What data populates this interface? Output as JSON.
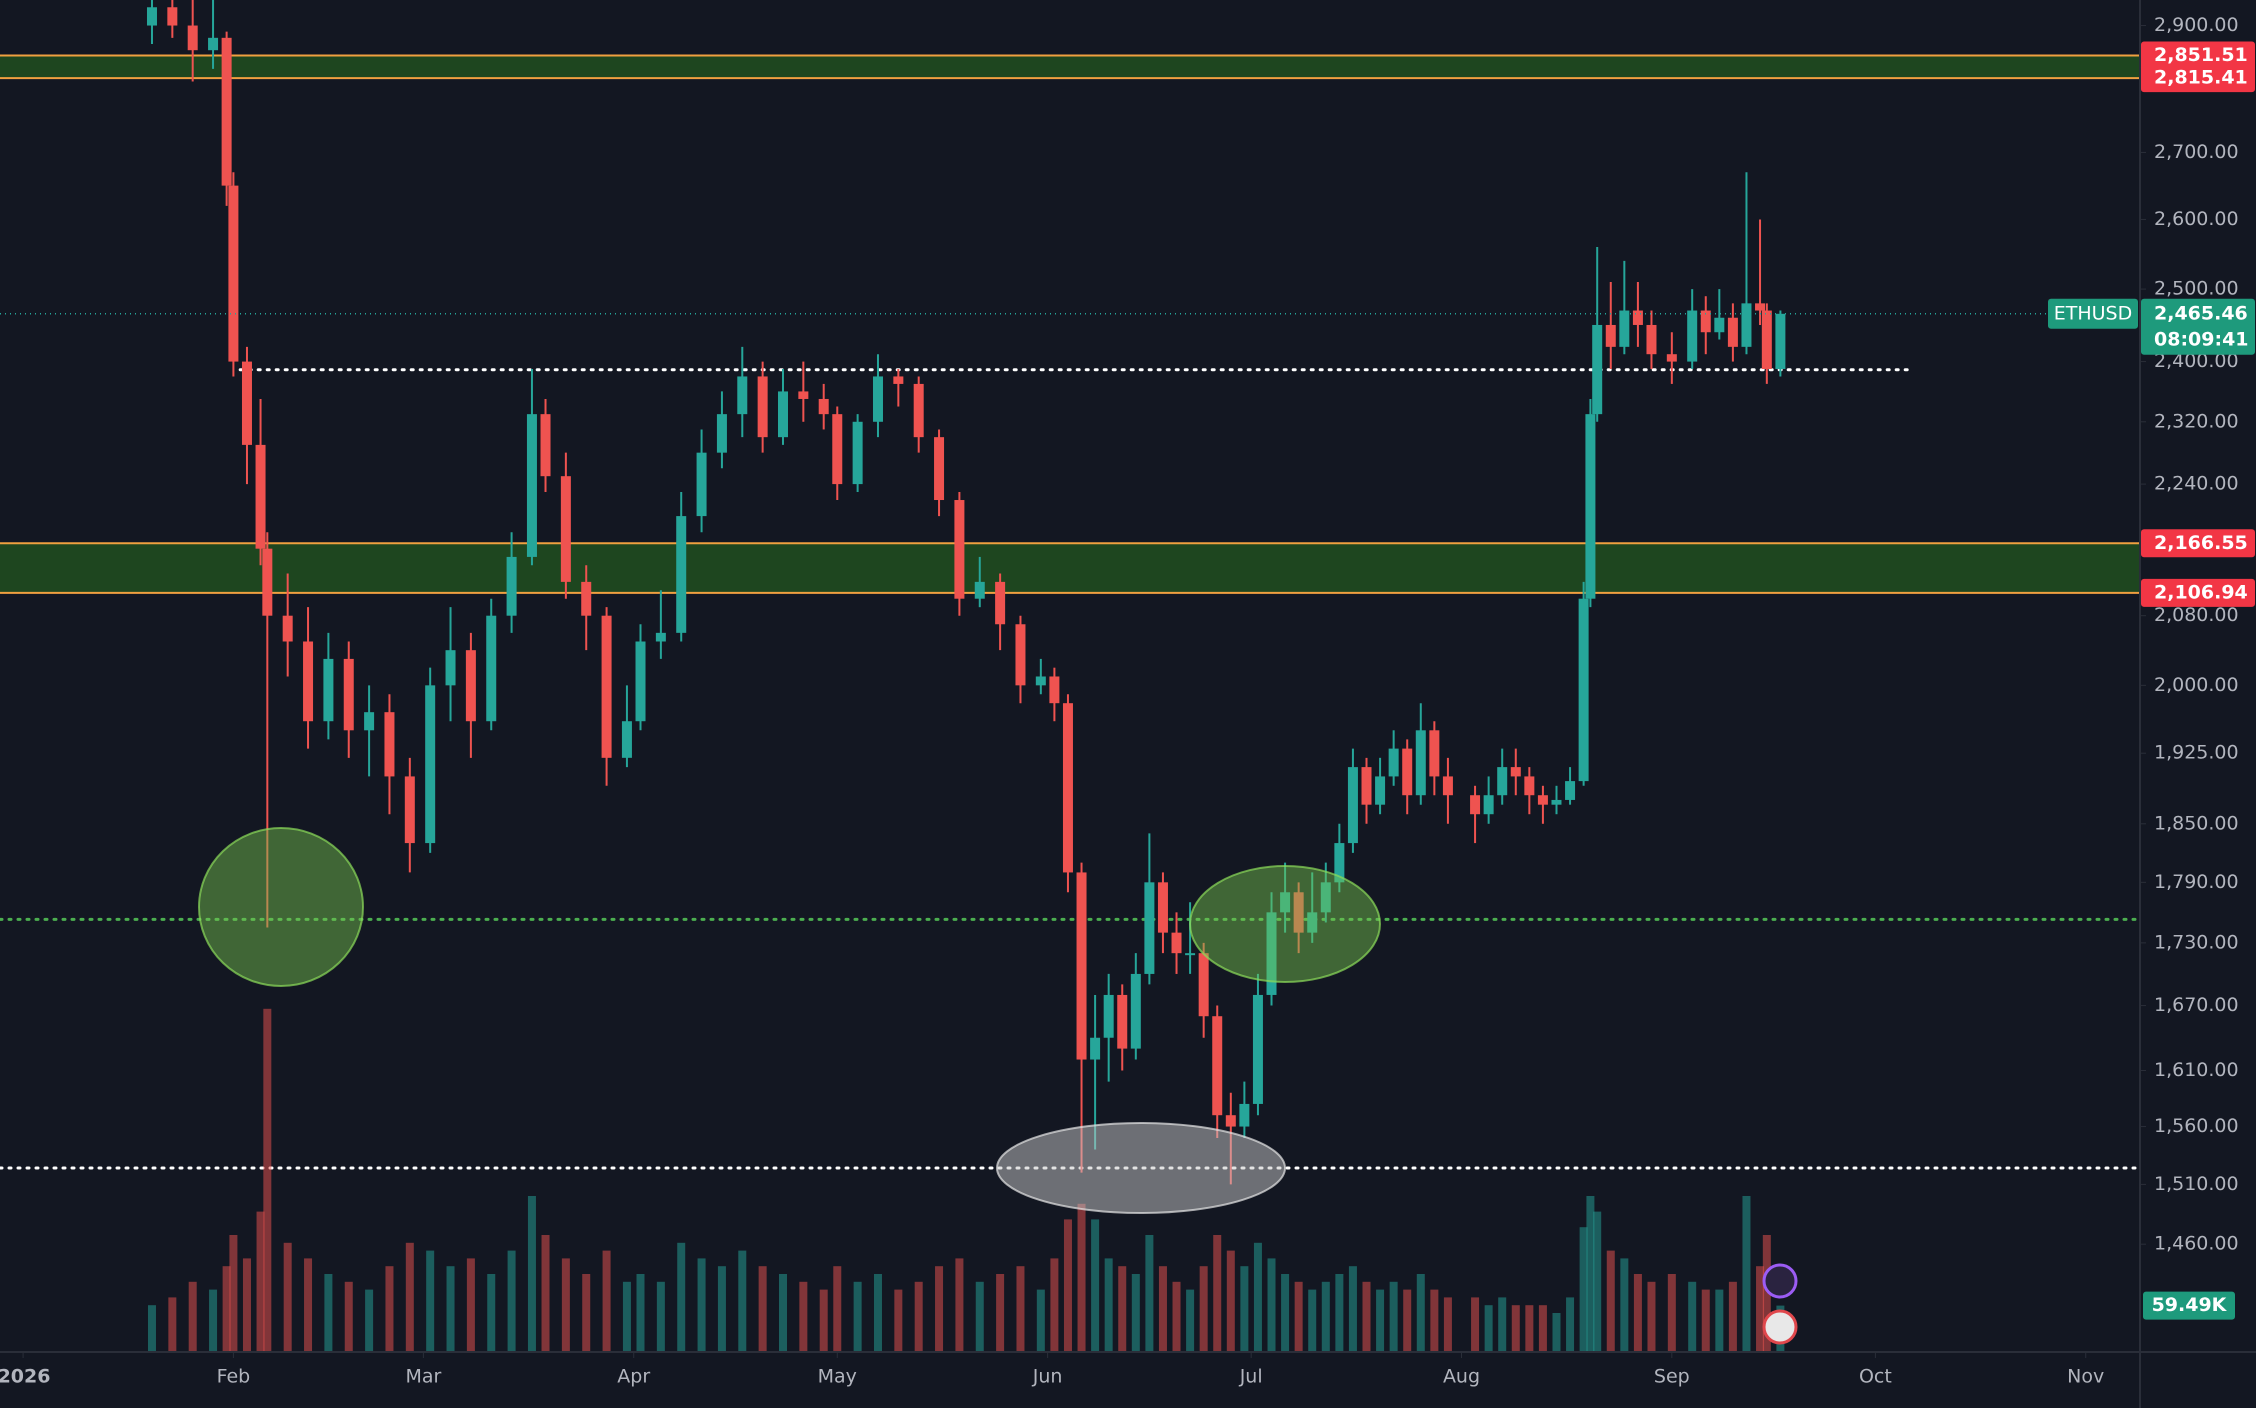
{
  "chart_data": {
    "type": "candlestick",
    "symbol": "ETHUSD",
    "up_color": "#26a69a",
    "down_color": "#ef5350",
    "log_scale": true,
    "ylim": [
      1374,
      2942
    ],
    "xlim": [
      -3.4,
      312
    ],
    "volume_lim": [
      0,
      500000
    ],
    "x": [
      19,
      22,
      25,
      28,
      30,
      31,
      33,
      35,
      36,
      39,
      42,
      45,
      48,
      51,
      54,
      57,
      60,
      63,
      66,
      69,
      72,
      75,
      77,
      80,
      83,
      86,
      89,
      91,
      94,
      97,
      100,
      103,
      106,
      109,
      112,
      115,
      118,
      120,
      123,
      126,
      129,
      132,
      135,
      138,
      141,
      144,
      147,
      150,
      152,
      154,
      156,
      158,
      160,
      162,
      164,
      166,
      168,
      170,
      172,
      174,
      176,
      178,
      180,
      182,
      184,
      186,
      188,
      190,
      192,
      194,
      196,
      198,
      200,
      202,
      204,
      206,
      208,
      210,
      214,
      216,
      218,
      220,
      222,
      224,
      226,
      228,
      230,
      231,
      232,
      234,
      236,
      238,
      240,
      243,
      246,
      248,
      250,
      252,
      254,
      256,
      257,
      259
    ],
    "open": [
      2900,
      2930,
      2900,
      2860,
      2880,
      2650,
      2400,
      2290,
      2160,
      2080,
      2050,
      1960,
      2030,
      1950,
      1970,
      1900,
      1830,
      2000,
      2040,
      1960,
      2080,
      2150,
      2330,
      2250,
      2120,
      2080,
      1920,
      1960,
      2050,
      2060,
      2200,
      2280,
      2330,
      2380,
      2300,
      2360,
      2350,
      2330,
      2240,
      2320,
      2380,
      2370,
      2300,
      2220,
      2100,
      2120,
      2070,
      2000,
      2010,
      1980,
      1800,
      1620,
      1640,
      1680,
      1630,
      1700,
      1790,
      1740,
      1720,
      1720,
      1660,
      1570,
      1560,
      1580,
      1680,
      1760,
      1780,
      1740,
      1760,
      1790,
      1830,
      1910,
      1870,
      1900,
      1930,
      1880,
      1950,
      1900,
      1880,
      1860,
      1880,
      1910,
      1900,
      1880,
      1870,
      1875,
      1895,
      2100,
      2330,
      2450,
      2420,
      2470,
      2450,
      2410,
      2400,
      2470,
      2440,
      2460,
      2420,
      2480,
      2470,
      2390
    ],
    "high": [
      2990,
      3010,
      2960,
      2960,
      2890,
      2670,
      2420,
      2350,
      2180,
      2130,
      2090,
      2060,
      2050,
      2000,
      1990,
      1920,
      2020,
      2090,
      2060,
      2100,
      2180,
      2390,
      2350,
      2280,
      2140,
      2090,
      2000,
      2070,
      2110,
      2230,
      2310,
      2360,
      2420,
      2400,
      2390,
      2400,
      2370,
      2340,
      2330,
      2410,
      2390,
      2380,
      2310,
      2230,
      2150,
      2130,
      2080,
      2030,
      2020,
      1990,
      1810,
      1680,
      1700,
      1690,
      1720,
      1840,
      1800,
      1760,
      1770,
      1730,
      1670,
      1590,
      1600,
      1700,
      1780,
      1810,
      1790,
      1800,
      1810,
      1850,
      1930,
      1920,
      1920,
      1950,
      1940,
      1980,
      1960,
      1920,
      1890,
      1900,
      1930,
      1930,
      1910,
      1890,
      1890,
      1910,
      2120,
      2350,
      2560,
      2510,
      2540,
      2510,
      2470,
      2440,
      2500,
      2490,
      2500,
      2480,
      2670,
      2600,
      2480,
      2470
    ],
    "low": [
      2870,
      2880,
      2810,
      2830,
      2620,
      2380,
      2240,
      2140,
      1745,
      2010,
      1930,
      1940,
      1920,
      1900,
      1860,
      1800,
      1820,
      1960,
      1920,
      1950,
      2060,
      2140,
      2230,
      2100,
      2040,
      1890,
      1910,
      1950,
      2030,
      2050,
      2180,
      2260,
      2300,
      2280,
      2290,
      2320,
      2310,
      2220,
      2230,
      2300,
      2340,
      2280,
      2200,
      2080,
      2090,
      2040,
      1980,
      1990,
      1960,
      1780,
      1520,
      1540,
      1600,
      1610,
      1620,
      1690,
      1720,
      1700,
      1700,
      1640,
      1550,
      1510,
      1550,
      1570,
      1670,
      1740,
      1720,
      1730,
      1750,
      1780,
      1820,
      1850,
      1860,
      1890,
      1860,
      1870,
      1880,
      1850,
      1830,
      1850,
      1870,
      1880,
      1860,
      1850,
      1860,
      1870,
      1890,
      2090,
      2320,
      2390,
      2410,
      2420,
      2390,
      2370,
      2390,
      2410,
      2430,
      2400,
      2410,
      2450,
      2370,
      2380
    ],
    "close": [
      2930,
      2900,
      2860,
      2880,
      2650,
      2400,
      2290,
      2160,
      2080,
      2050,
      1960,
      2030,
      1950,
      1970,
      1900,
      1830,
      2000,
      2040,
      1960,
      2080,
      2150,
      2330,
      2250,
      2120,
      2080,
      1920,
      1960,
      2050,
      2060,
      2200,
      2280,
      2330,
      2380,
      2300,
      2360,
      2350,
      2330,
      2240,
      2320,
      2380,
      2370,
      2300,
      2220,
      2100,
      2120,
      2070,
      2000,
      2010,
      1980,
      1800,
      1620,
      1640,
      1680,
      1630,
      1700,
      1790,
      1740,
      1720,
      1720,
      1660,
      1570,
      1560,
      1580,
      1680,
      1760,
      1780,
      1740,
      1760,
      1790,
      1830,
      1910,
      1870,
      1900,
      1930,
      1880,
      1950,
      1900,
      1880,
      1860,
      1880,
      1910,
      1900,
      1880,
      1870,
      1875,
      1895,
      2100,
      2330,
      2450,
      2420,
      2470,
      2450,
      2410,
      2400,
      2470,
      2440,
      2460,
      2420,
      2480,
      2470,
      2390,
      2465.46
    ],
    "volume": [
      60000,
      70000,
      90000,
      80000,
      110000,
      150000,
      120000,
      180000,
      440000,
      140000,
      120000,
      100000,
      90000,
      80000,
      110000,
      140000,
      130000,
      110000,
      120000,
      100000,
      130000,
      200000,
      150000,
      120000,
      100000,
      130000,
      90000,
      100000,
      90000,
      140000,
      120000,
      110000,
      130000,
      110000,
      100000,
      90000,
      80000,
      110000,
      90000,
      100000,
      80000,
      90000,
      110000,
      120000,
      90000,
      100000,
      110000,
      80000,
      120000,
      170000,
      190000,
      170000,
      120000,
      110000,
      100000,
      150000,
      110000,
      90000,
      80000,
      110000,
      150000,
      130000,
      110000,
      140000,
      120000,
      100000,
      90000,
      80000,
      90000,
      100000,
      110000,
      90000,
      80000,
      90000,
      80000,
      100000,
      80000,
      70000,
      70000,
      60000,
      70000,
      60000,
      60000,
      60000,
      50000,
      70000,
      160000,
      200000,
      180000,
      130000,
      120000,
      100000,
      90000,
      100000,
      90000,
      80000,
      80000,
      90000,
      200000,
      110000,
      150000,
      59490
    ],
    "yticks": [
      {
        "value": 2900,
        "label": "2,900.00"
      },
      {
        "value": 2700,
        "label": "2,700.00"
      },
      {
        "value": 2600,
        "label": "2,600.00"
      },
      {
        "value": 2500,
        "label": "2,500.00"
      },
      {
        "value": 2400,
        "label": "2,400.00"
      },
      {
        "value": 2320,
        "label": "2,320.00"
      },
      {
        "value": 2240,
        "label": "2,240.00"
      },
      {
        "value": 2080,
        "label": "2,080.00"
      },
      {
        "value": 2000,
        "label": "2,000.00"
      },
      {
        "value": 1925,
        "label": "1,925.00"
      },
      {
        "value": 1850,
        "label": "1,850.00"
      },
      {
        "value": 1790,
        "label": "1,790.00"
      },
      {
        "value": 1730,
        "label": "1,730.00"
      },
      {
        "value": 1670,
        "label": "1,670.00"
      },
      {
        "value": 1610,
        "label": "1,610.00"
      },
      {
        "value": 1560,
        "label": "1,560.00"
      },
      {
        "value": 1510,
        "label": "1,510.00"
      },
      {
        "value": 1460,
        "label": "1,460.00"
      }
    ],
    "xticks": [
      {
        "value": 0,
        "label": "2026"
      },
      {
        "value": 31,
        "label": "Feb"
      },
      {
        "value": 59,
        "label": "Mar"
      },
      {
        "value": 90,
        "label": "Apr"
      },
      {
        "value": 120,
        "label": "May"
      },
      {
        "value": 151,
        "label": "Jun"
      },
      {
        "value": 181,
        "label": "Jul"
      },
      {
        "value": 212,
        "label": "Aug"
      },
      {
        "value": 243,
        "label": "Sep"
      },
      {
        "value": 273,
        "label": "Oct"
      },
      {
        "value": 304,
        "label": "Nov"
      }
    ],
    "zones": [
      {
        "levels": [
          {
            "value": 2851.51,
            "label": "2,851.51"
          },
          {
            "value": 2815.41,
            "label": "2,815.41"
          }
        ]
      },
      {
        "levels": [
          {
            "value": 2166.55,
            "label": "2,166.55"
          },
          {
            "value": 2106.94,
            "label": "2,106.94"
          }
        ]
      }
    ],
    "guides": [
      {
        "value": 2389,
        "color": "#ffffff",
        "from": 32,
        "to": 278
      },
      {
        "value": 1753,
        "color": "#4caf50"
      },
      {
        "value": 1524,
        "color": "#ffffff"
      }
    ],
    "last_price_label": "2,465.46",
    "countdown": "08:09:41",
    "volume_label": {
      "value": 59490,
      "label": "59.49K"
    }
  }
}
